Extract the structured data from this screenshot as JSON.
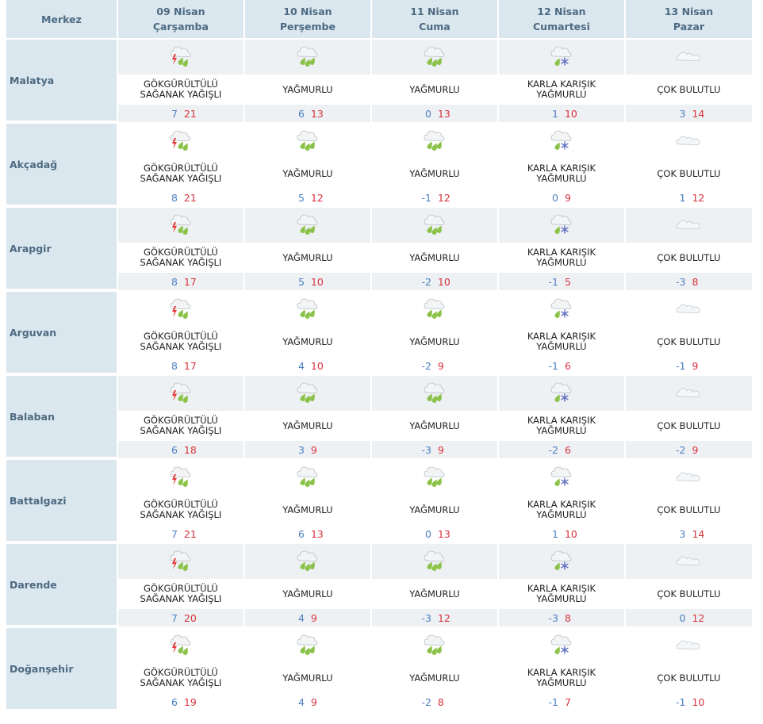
{
  "header": {
    "merkez_label": "Merkez",
    "days": [
      {
        "date": "09 Nisan",
        "weekday": "Çarşamba"
      },
      {
        "date": "10 Nisan",
        "weekday": "Perşembe"
      },
      {
        "date": "11 Nisan",
        "weekday": "Cuma"
      },
      {
        "date": "12 Nisan",
        "weekday": "Cumartesi"
      },
      {
        "date": "13 Nisan",
        "weekday": "Pazar"
      }
    ]
  },
  "conditions": {
    "thunder": {
      "icon": "thunderstorm-icon",
      "line1": "GÖKGÜRÜLTÜLÜ",
      "line2": "SAĞANAK YAĞIŞLI"
    },
    "rain": {
      "icon": "rain-cloud-icon",
      "line1": "YAĞMURLU",
      "line2": ""
    },
    "sleet": {
      "icon": "sleet-icon",
      "line1": "KARLA KARIŞIK",
      "line2": "YAĞMURLU"
    },
    "cloudy": {
      "icon": "cloud-icon",
      "line1": "ÇOK BULUTLU",
      "line2": ""
    }
  },
  "colors": {
    "header_bg": "#dbe7ef",
    "shade_bg": "#edf1f4",
    "min_temp": "#4c7fc0",
    "max_temp": "#d8323c",
    "label": "#4d6a82"
  },
  "cities": [
    {
      "name": "Malatya",
      "days": [
        {
          "cond": "thunder",
          "line1": "GÖKGÜRÜLTÜLÜ",
          "line2": "SAĞANAK YAĞIŞLI",
          "min": "7",
          "max": "21"
        },
        {
          "cond": "rain",
          "line1": "YAĞMURLU",
          "line2": "",
          "min": "6",
          "max": "13"
        },
        {
          "cond": "rain",
          "line1": "YAĞMURLU",
          "line2": "",
          "min": "0",
          "max": "13"
        },
        {
          "cond": "sleet",
          "line1": "KARLA KARIŞIK",
          "line2": "YAĞMURLU",
          "min": "1",
          "max": "10"
        },
        {
          "cond": "cloudy",
          "line1": "ÇOK BULUTLU",
          "line2": "",
          "min": "3",
          "max": "14"
        }
      ]
    },
    {
      "name": "Akçadağ",
      "days": [
        {
          "cond": "thunder",
          "line1": "GÖKGÜRÜLTÜLÜ",
          "line2": "SAĞANAK YAĞIŞLI",
          "min": "8",
          "max": "21"
        },
        {
          "cond": "rain",
          "line1": "YAĞMURLU",
          "line2": "",
          "min": "5",
          "max": "12"
        },
        {
          "cond": "rain",
          "line1": "YAĞMURLU",
          "line2": "",
          "min": "-1",
          "max": "12"
        },
        {
          "cond": "sleet",
          "line1": "KARLA KARIŞIK",
          "line2": "YAĞMURLU",
          "min": "0",
          "max": "9"
        },
        {
          "cond": "cloudy",
          "line1": "ÇOK BULUTLU",
          "line2": "",
          "min": "1",
          "max": "12"
        }
      ]
    },
    {
      "name": "Arapgir",
      "days": [
        {
          "cond": "thunder",
          "line1": "GÖKGÜRÜLTÜLÜ",
          "line2": "SAĞANAK YAĞIŞLI",
          "min": "8",
          "max": "17"
        },
        {
          "cond": "rain",
          "line1": "YAĞMURLU",
          "line2": "",
          "min": "5",
          "max": "10"
        },
        {
          "cond": "rain",
          "line1": "YAĞMURLU",
          "line2": "",
          "min": "-2",
          "max": "10"
        },
        {
          "cond": "sleet",
          "line1": "KARLA KARIŞIK",
          "line2": "YAĞMURLU",
          "min": "-1",
          "max": "5"
        },
        {
          "cond": "cloudy",
          "line1": "ÇOK BULUTLU",
          "line2": "",
          "min": "-3",
          "max": "8"
        }
      ]
    },
    {
      "name": "Arguvan",
      "days": [
        {
          "cond": "thunder",
          "line1": "GÖKGÜRÜLTÜLÜ",
          "line2": "SAĞANAK YAĞIŞLI",
          "min": "8",
          "max": "17"
        },
        {
          "cond": "rain",
          "line1": "YAĞMURLU",
          "line2": "",
          "min": "4",
          "max": "10"
        },
        {
          "cond": "rain",
          "line1": "YAĞMURLU",
          "line2": "",
          "min": "-2",
          "max": "9"
        },
        {
          "cond": "sleet",
          "line1": "KARLA KARIŞIK",
          "line2": "YAĞMURLU",
          "min": "-1",
          "max": "6"
        },
        {
          "cond": "cloudy",
          "line1": "ÇOK BULUTLU",
          "line2": "",
          "min": "-1",
          "max": "9"
        }
      ]
    },
    {
      "name": "Balaban",
      "days": [
        {
          "cond": "thunder",
          "line1": "GÖKGÜRÜLTÜLÜ",
          "line2": "SAĞANAK YAĞIŞLI",
          "min": "6",
          "max": "18"
        },
        {
          "cond": "rain",
          "line1": "YAĞMURLU",
          "line2": "",
          "min": "3",
          "max": "9"
        },
        {
          "cond": "rain",
          "line1": "YAĞMURLU",
          "line2": "",
          "min": "-3",
          "max": "9"
        },
        {
          "cond": "sleet",
          "line1": "KARLA KARIŞIK",
          "line2": "YAĞMURLU",
          "min": "-2",
          "max": "6"
        },
        {
          "cond": "cloudy",
          "line1": "ÇOK BULUTLU",
          "line2": "",
          "min": "-2",
          "max": "9"
        }
      ]
    },
    {
      "name": "Battalgazi",
      "days": [
        {
          "cond": "thunder",
          "line1": "GÖKGÜRÜLTÜLÜ",
          "line2": "SAĞANAK YAĞIŞLI",
          "min": "7",
          "max": "21"
        },
        {
          "cond": "rain",
          "line1": "YAĞMURLU",
          "line2": "",
          "min": "6",
          "max": "13"
        },
        {
          "cond": "rain",
          "line1": "YAĞMURLU",
          "line2": "",
          "min": "0",
          "max": "13"
        },
        {
          "cond": "sleet",
          "line1": "KARLA KARIŞIK",
          "line2": "YAĞMURLU",
          "min": "1",
          "max": "10"
        },
        {
          "cond": "cloudy",
          "line1": "ÇOK BULUTLU",
          "line2": "",
          "min": "3",
          "max": "14"
        }
      ]
    },
    {
      "name": "Darende",
      "days": [
        {
          "cond": "thunder",
          "line1": "GÖKGÜRÜLTÜLÜ",
          "line2": "SAĞANAK YAĞIŞLI",
          "min": "7",
          "max": "20"
        },
        {
          "cond": "rain",
          "line1": "YAĞMURLU",
          "line2": "",
          "min": "4",
          "max": "9"
        },
        {
          "cond": "rain",
          "line1": "YAĞMURLU",
          "line2": "",
          "min": "-3",
          "max": "12"
        },
        {
          "cond": "sleet",
          "line1": "KARLA KARIŞIK",
          "line2": "YAĞMURLU",
          "min": "-3",
          "max": "8"
        },
        {
          "cond": "cloudy",
          "line1": "ÇOK BULUTLU",
          "line2": "",
          "min": "0",
          "max": "12"
        }
      ]
    },
    {
      "name": "Doğanşehir",
      "days": [
        {
          "cond": "thunder",
          "line1": "GÖKGÜRÜLTÜLÜ",
          "line2": "SAĞANAK YAĞIŞLI",
          "min": "6",
          "max": "19"
        },
        {
          "cond": "rain",
          "line1": "YAĞMURLU",
          "line2": "",
          "min": "4",
          "max": "9"
        },
        {
          "cond": "rain",
          "line1": "YAĞMURLU",
          "line2": "",
          "min": "-2",
          "max": "8"
        },
        {
          "cond": "sleet",
          "line1": "KARLA KARIŞIK",
          "line2": "YAĞMURLU",
          "min": "-1",
          "max": "7"
        },
        {
          "cond": "cloudy",
          "line1": "ÇOK BULUTLU",
          "line2": "",
          "min": "-1",
          "max": "10"
        }
      ]
    }
  ]
}
